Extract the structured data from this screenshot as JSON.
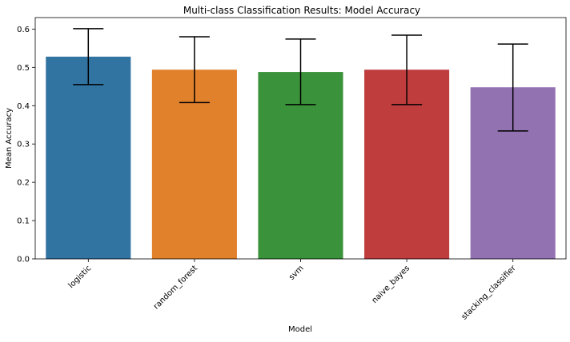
{
  "chart_data": {
    "type": "bar",
    "title": "Multi-class Classification Results: Model Accuracy",
    "xlabel": "Model",
    "ylabel": "Mean Accuracy",
    "categories": [
      "logistic",
      "random_forest",
      "svm",
      "naive_bayes",
      "stacking_classifier"
    ],
    "values": [
      0.528,
      0.494,
      0.488,
      0.494,
      0.448
    ],
    "error_low": [
      0.455,
      0.408,
      0.403,
      0.403,
      0.334
    ],
    "error_high": [
      0.601,
      0.58,
      0.574,
      0.584,
      0.561
    ],
    "colors": [
      "#3274a1",
      "#e1812c",
      "#3a923a",
      "#c03d3e",
      "#9372b2"
    ],
    "ylim": [
      0,
      0.63
    ],
    "yticks": [
      "0.0",
      "0.1",
      "0.2",
      "0.3",
      "0.4",
      "0.5",
      "0.6"
    ],
    "ytick_values": [
      0,
      0.1,
      0.2,
      0.3,
      0.4,
      0.5,
      0.6
    ],
    "grid": false,
    "legend": "none"
  }
}
